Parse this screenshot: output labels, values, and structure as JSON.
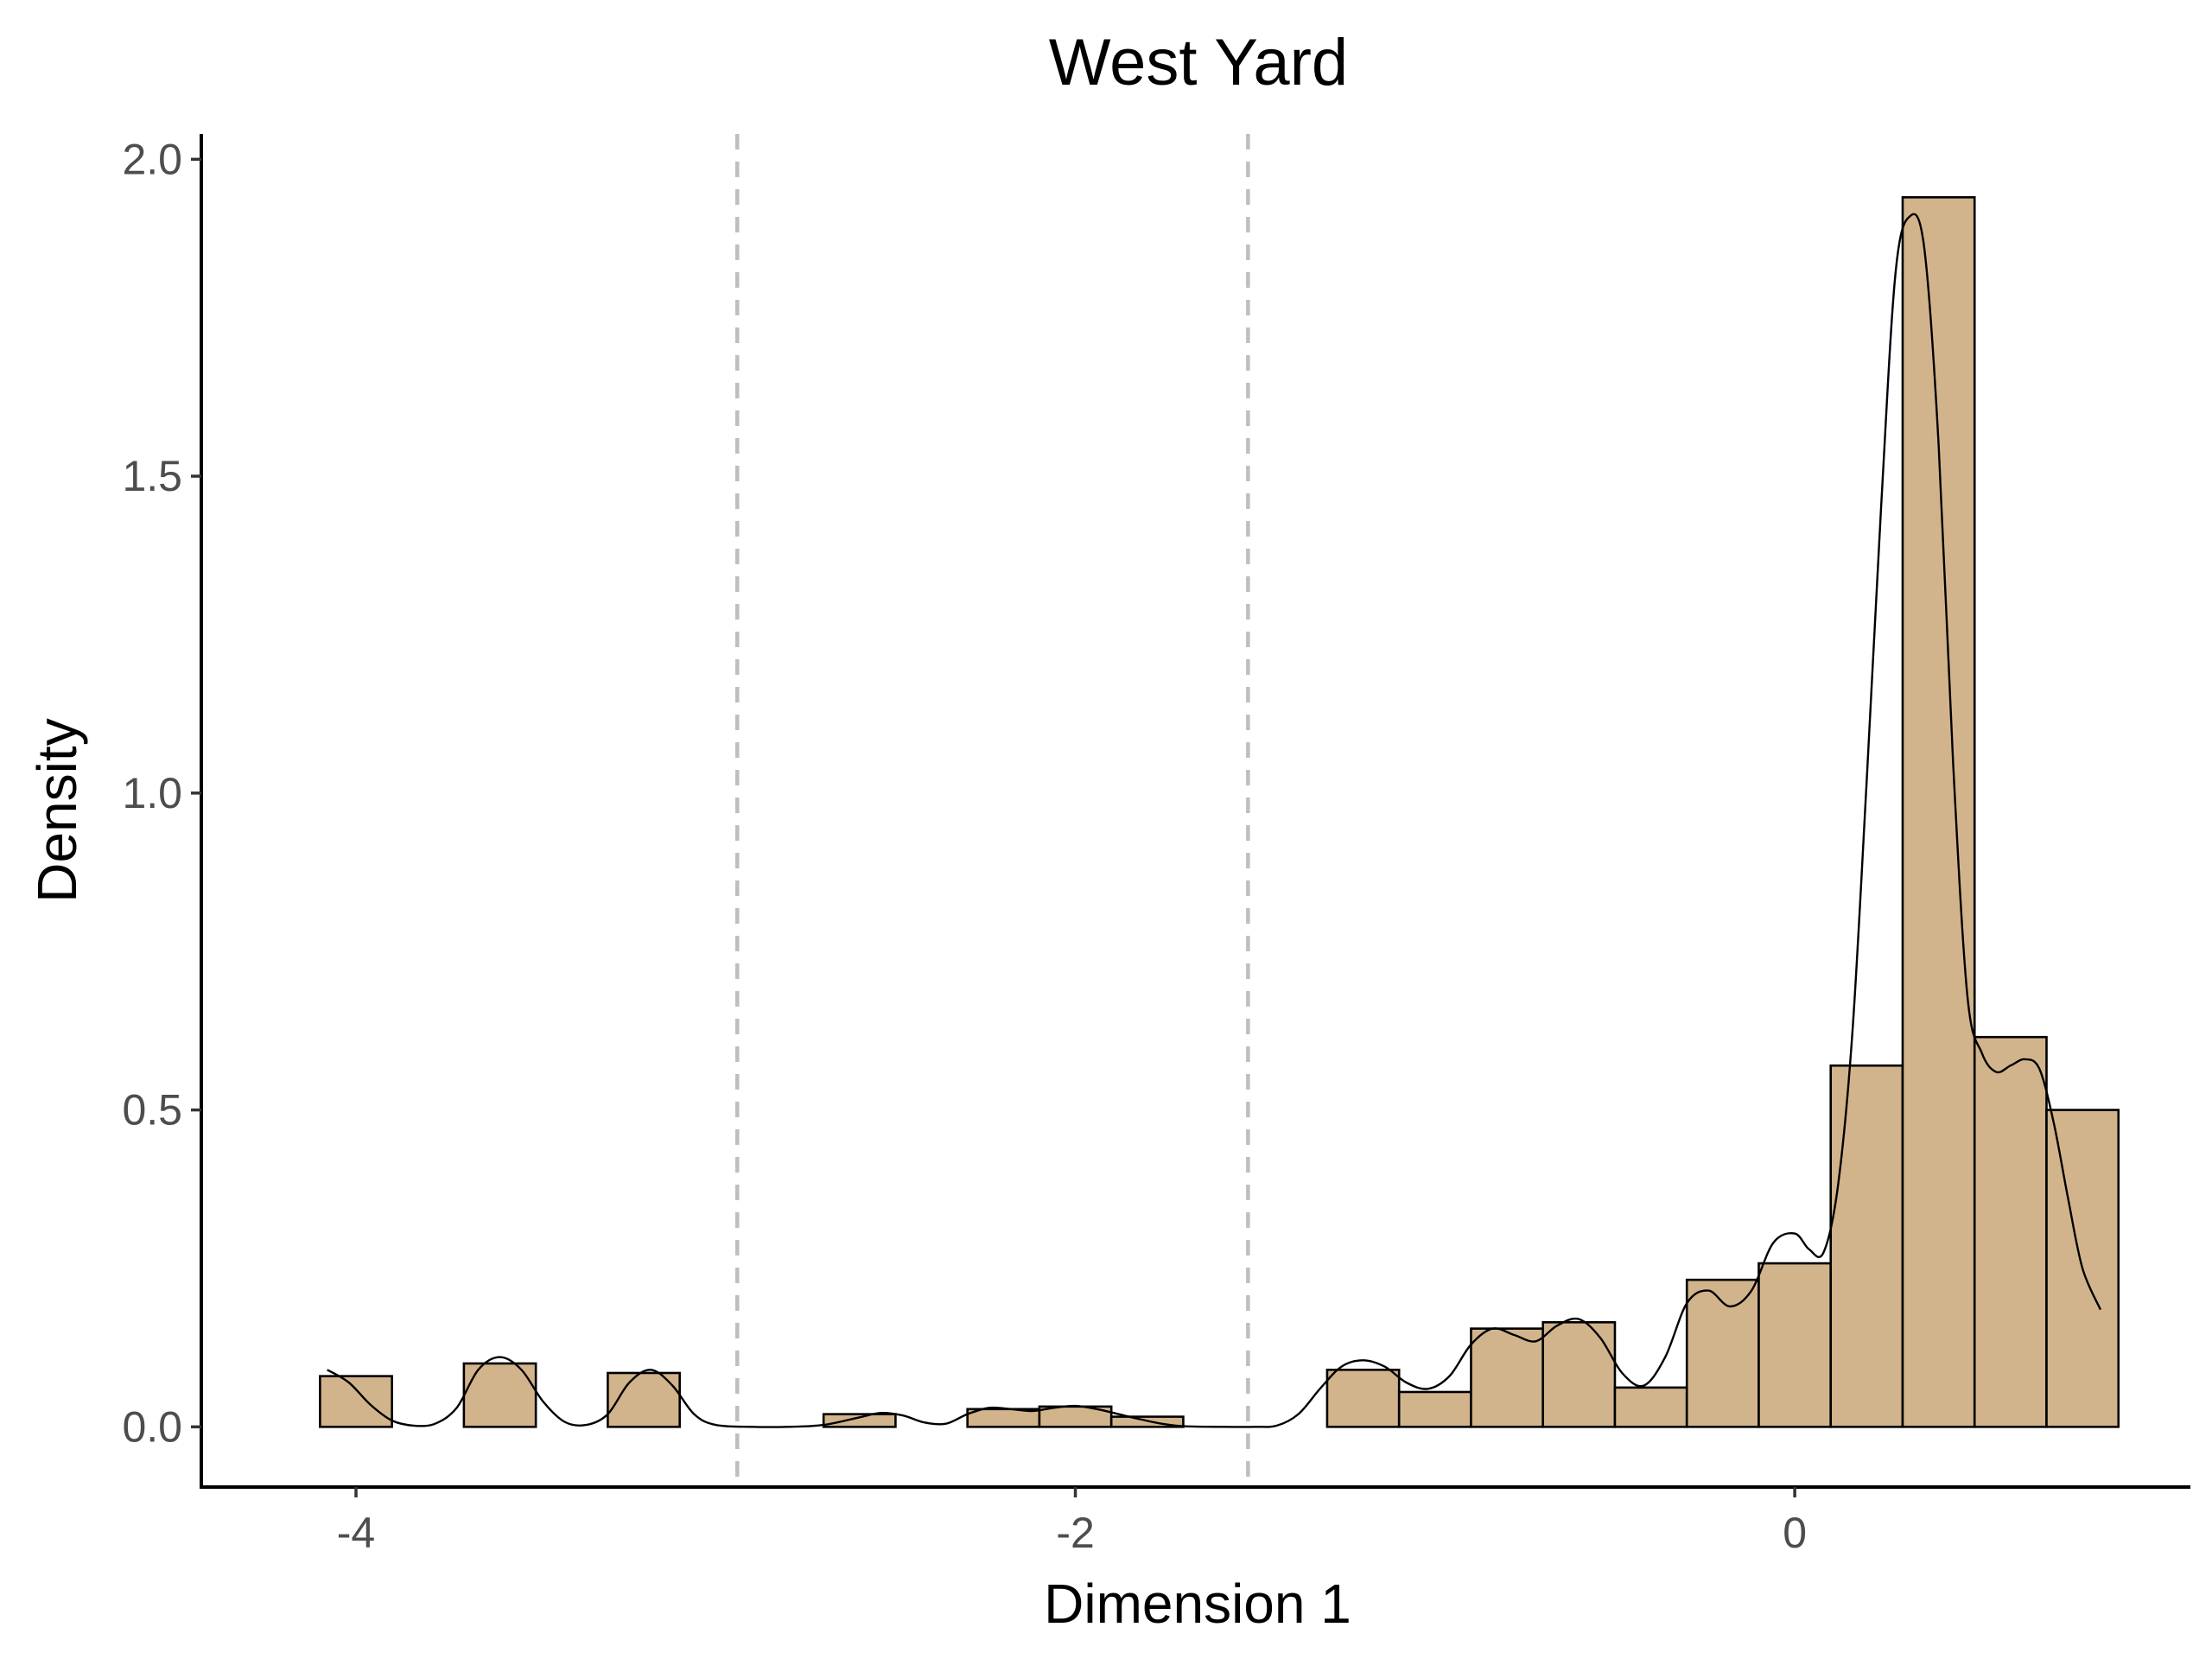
{
  "chart_data": {
    "type": "bar",
    "title": "West Yard",
    "xlabel": "Dimension 1",
    "ylabel": "Density",
    "xlim": [
      -4.43,
      1.1
    ],
    "ylim": [
      -0.095,
      2.04
    ],
    "xticks": [
      -4,
      -2,
      0
    ],
    "yticks": [
      0.0,
      0.5,
      1.0,
      1.5,
      2.0
    ],
    "xtick_labels": [
      "-4",
      "-2",
      "0"
    ],
    "ytick_labels": [
      "0.0",
      "0.5",
      "1.0",
      "1.5",
      "2.0"
    ],
    "grid": false,
    "legend": "none",
    "bar_color": "#d2b48c",
    "bin_width": 0.2,
    "bars": [
      {
        "x0": -4.1,
        "x1": -3.9,
        "density": 0.08
      },
      {
        "x0": -3.9,
        "x1": -3.7,
        "density": 0.0
      },
      {
        "x0": -3.7,
        "x1": -3.5,
        "density": 0.1
      },
      {
        "x0": -3.5,
        "x1": -3.3,
        "density": 0.0
      },
      {
        "x0": -3.3,
        "x1": -3.1,
        "density": 0.085
      },
      {
        "x0": -3.1,
        "x1": -2.9,
        "density": 0.0
      },
      {
        "x0": -2.9,
        "x1": -2.7,
        "density": 0.0
      },
      {
        "x0": -2.7,
        "x1": -2.5,
        "density": 0.02
      },
      {
        "x0": -2.5,
        "x1": -2.3,
        "density": 0.0
      },
      {
        "x0": -2.3,
        "x1": -2.1,
        "density": 0.028
      },
      {
        "x0": -2.1,
        "x1": -1.9,
        "density": 0.032
      },
      {
        "x0": -1.9,
        "x1": -1.7,
        "density": 0.016
      },
      {
        "x0": -1.7,
        "x1": -1.5,
        "density": 0.0
      },
      {
        "x0": -1.5,
        "x1": -1.3,
        "density": 0.0
      },
      {
        "x0": -1.3,
        "x1": -1.1,
        "density": 0.09
      },
      {
        "x0": -1.1,
        "x1": -0.9,
        "density": 0.055
      },
      {
        "x0": -0.9,
        "x1": -0.7,
        "density": 0.155
      },
      {
        "x0": -0.7,
        "x1": -0.5,
        "density": 0.165
      },
      {
        "x0": -0.5,
        "x1": -0.3,
        "density": 0.062
      },
      {
        "x0": -0.3,
        "x1": -0.1,
        "density": 0.232
      },
      {
        "x0": -0.1,
        "x1": 0.1,
        "density": 0.258
      },
      {
        "x0": 0.1,
        "x1": 0.3,
        "density": 0.57
      },
      {
        "x0": 0.3,
        "x1": 0.5,
        "density": 1.94
      },
      {
        "x0": 0.5,
        "x1": 0.7,
        "density": 0.615
      },
      {
        "x0": 0.7,
        "x1": 0.9,
        "density": 0.5
      }
    ],
    "density_curve": {
      "x": [
        -4.08,
        -4.02,
        -3.96,
        -3.9,
        -3.84,
        -3.78,
        -3.72,
        -3.66,
        -3.6,
        -3.54,
        -3.48,
        -3.42,
        -3.36,
        -3.3,
        -3.24,
        -3.18,
        -3.12,
        -3.06,
        -3.0,
        -2.9,
        -2.8,
        -2.7,
        -2.6,
        -2.54,
        -2.48,
        -2.42,
        -2.36,
        -2.3,
        -2.24,
        -2.18,
        -2.12,
        -2.06,
        -2.0,
        -1.94,
        -1.88,
        -1.82,
        -1.76,
        -1.7,
        -1.6,
        -1.5,
        -1.44,
        -1.38,
        -1.32,
        -1.26,
        -1.2,
        -1.14,
        -1.08,
        -1.02,
        -0.96,
        -0.9,
        -0.84,
        -0.78,
        -0.72,
        -0.66,
        -0.6,
        -0.54,
        -0.48,
        -0.42,
        -0.36,
        -0.3,
        -0.24,
        -0.18,
        -0.12,
        -0.06,
        0.0,
        0.04,
        0.08,
        0.12,
        0.16,
        0.2,
        0.24,
        0.28,
        0.32,
        0.36,
        0.4,
        0.44,
        0.48,
        0.52,
        0.56,
        0.6,
        0.64,
        0.68,
        0.72,
        0.76,
        0.8,
        0.85
      ],
      "y": [
        0.09,
        0.07,
        0.035,
        0.01,
        0.002,
        0.005,
        0.03,
        0.09,
        0.11,
        0.09,
        0.04,
        0.008,
        0.003,
        0.02,
        0.07,
        0.09,
        0.065,
        0.02,
        0.003,
        0.0,
        0.0,
        0.003,
        0.015,
        0.022,
        0.018,
        0.007,
        0.005,
        0.02,
        0.03,
        0.028,
        0.025,
        0.03,
        0.033,
        0.028,
        0.02,
        0.012,
        0.005,
        0.001,
        0.0,
        0.0,
        0.002,
        0.02,
        0.06,
        0.095,
        0.105,
        0.095,
        0.07,
        0.06,
        0.08,
        0.13,
        0.155,
        0.145,
        0.135,
        0.16,
        0.17,
        0.14,
        0.085,
        0.065,
        0.11,
        0.195,
        0.215,
        0.19,
        0.215,
        0.29,
        0.305,
        0.28,
        0.275,
        0.38,
        0.62,
        1.02,
        1.45,
        1.82,
        1.91,
        1.86,
        1.55,
        1.05,
        0.68,
        0.59,
        0.56,
        0.57,
        0.58,
        0.565,
        0.48,
        0.36,
        0.25,
        0.185
      ]
    },
    "reference_lines_x": [
      -2.94,
      -1.52
    ],
    "reference_line_color": "#bebebe"
  }
}
